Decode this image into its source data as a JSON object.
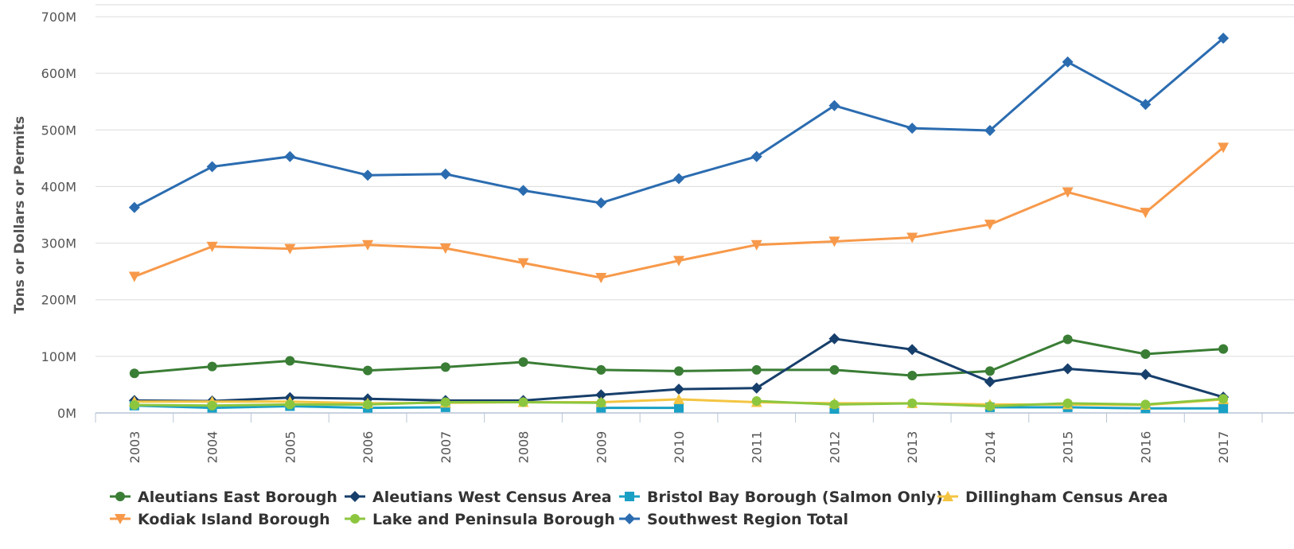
{
  "chart_data": {
    "type": "line",
    "title": "",
    "xlabel": "",
    "ylabel": "Tons or Dollars or Permits",
    "ylim": [
      0,
      700
    ],
    "yticks": [
      "0M",
      "100M",
      "200M",
      "300M",
      "400M",
      "500M",
      "600M",
      "700M"
    ],
    "x": [
      "2003",
      "2004",
      "2005",
      "2006",
      "2007",
      "2008",
      "2009",
      "2010",
      "2011",
      "2012",
      "2013",
      "2014",
      "2015",
      "2016",
      "2017"
    ],
    "grid": true,
    "legend_placement": "bottom",
    "series": [
      {
        "name": "Aleutians East Borough",
        "color": "#3a7d35",
        "marker": "circle",
        "values": [
          70,
          82,
          92,
          75,
          81,
          90,
          76,
          74,
          76,
          76,
          66,
          74,
          130,
          104,
          113
        ]
      },
      {
        "name": "Aleutians West Census Area",
        "color": "#173f6b",
        "marker": "diamond",
        "values": [
          22,
          21,
          27,
          25,
          22,
          22,
          32,
          42,
          44,
          131,
          112,
          55,
          78,
          68,
          28
        ]
      },
      {
        "name": "Bristol Bay Borough (Salmon Only)",
        "color": "#1aa0c4",
        "marker": "square",
        "values": [
          13,
          9,
          12,
          9,
          10,
          null,
          9,
          9,
          null,
          7,
          null,
          10,
          10,
          8,
          8
        ]
      },
      {
        "name": "Dillingham Census Area",
        "color": "#f4c542",
        "marker": "triangle-up",
        "values": [
          20,
          20,
          20,
          17,
          18,
          19,
          19,
          24,
          19,
          17,
          17,
          15,
          15,
          14,
          24
        ]
      },
      {
        "name": "Kodiak Island Borough",
        "color": "#f7994a",
        "marker": "triangle-down",
        "values": [
          241,
          294,
          290,
          297,
          291,
          265,
          239,
          269,
          297,
          303,
          310,
          333,
          390,
          354,
          469
        ]
      },
      {
        "name": "Lake and Peninsula Borough",
        "color": "#8cc63f",
        "marker": "circle",
        "values": [
          14,
          13,
          15,
          15,
          19,
          19,
          18,
          null,
          21,
          15,
          17,
          12,
          17,
          15,
          25
        ]
      },
      {
        "name": "Southwest Region Total",
        "color": "#2b6cb0",
        "marker": "diamond",
        "values": [
          363,
          435,
          453,
          420,
          422,
          393,
          371,
          414,
          453,
          543,
          503,
          499,
          620,
          545,
          662
        ]
      }
    ]
  }
}
